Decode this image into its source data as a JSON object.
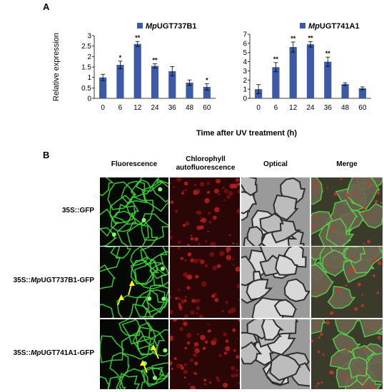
{
  "panel_a_label": "A",
  "panel_b_label": "B",
  "x_axis_title": "Time after UV treatment (h)",
  "chart_data": [
    {
      "type": "bar",
      "legend": {
        "prefix": "Mp",
        "rest": "UGT737B1"
      },
      "ylabel": "Relative expression",
      "categories": [
        "0",
        "6",
        "12",
        "24",
        "36",
        "48",
        "60"
      ],
      "values": [
        1.0,
        1.6,
        2.6,
        1.55,
        1.3,
        0.75,
        0.55
      ],
      "errors": [
        0.15,
        0.18,
        0.12,
        0.1,
        0.22,
        0.13,
        0.15
      ],
      "significance": [
        "",
        "*",
        "**",
        "**",
        "",
        "",
        "*"
      ],
      "ylim": [
        0,
        3
      ],
      "yticks": [
        "0",
        "0.5",
        "1",
        "1.5",
        "2",
        "2.5",
        "3"
      ],
      "bar_color": "#3c5aa6"
    },
    {
      "type": "bar",
      "legend": {
        "prefix": "Mp",
        "rest": "UGT741A1"
      },
      "ylabel": "",
      "categories": [
        "0",
        "6",
        "12",
        "24",
        "36",
        "48",
        "60"
      ],
      "values": [
        1.0,
        3.4,
        5.6,
        5.9,
        4.0,
        1.55,
        1.1
      ],
      "errors": [
        0.5,
        0.5,
        0.55,
        0.3,
        0.5,
        0.15,
        0.15
      ],
      "significance": [
        "",
        "**",
        "**",
        "**",
        "**",
        "",
        ""
      ],
      "ylim": [
        0,
        7
      ],
      "yticks": [
        "0",
        "1",
        "2",
        "3",
        "4",
        "5",
        "6",
        "7"
      ],
      "bar_color": "#3c5aa6"
    }
  ],
  "microscopy": {
    "columns": [
      {
        "label": "Fluorescence"
      },
      {
        "label": "Chlorophyll autofluorescence"
      },
      {
        "label": "Optical"
      },
      {
        "label": "Merge"
      }
    ],
    "rows": [
      {
        "prefix": "35S::",
        "gene_italic": "",
        "suffix": "GFP"
      },
      {
        "prefix": "35S::",
        "gene_italic": "Mp",
        "suffix": "UGT737B1-GFP"
      },
      {
        "prefix": "35S::",
        "gene_italic": "Mp",
        "suffix": "UGT741A1-GFP"
      }
    ]
  }
}
